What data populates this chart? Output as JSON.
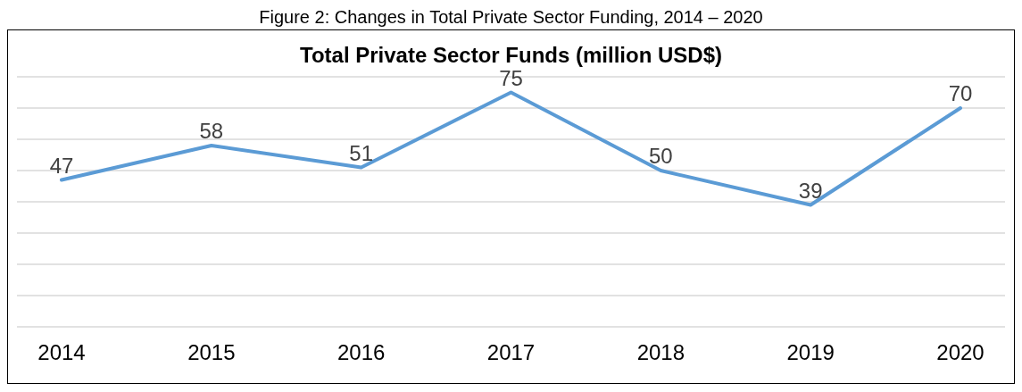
{
  "chart_data": {
    "type": "line",
    "title": "Figure 2: Changes in Total Private Sector Funding, 2014 – 2020",
    "subtitle": "Total Private Sector Funds (million USD$)",
    "categories": [
      "2014",
      "2015",
      "2016",
      "2017",
      "2018",
      "2019",
      "2020"
    ],
    "series": [
      {
        "color": "#5b9bd5",
        "values": [
          47,
          58,
          51,
          75,
          50,
          39,
          70
        ]
      }
    ],
    "ylim": [
      0,
      80
    ],
    "yticks": [
      {
        "value": 0,
        "label": null
      },
      {
        "value": 10,
        "label": null
      },
      {
        "value": 20,
        "label": null
      },
      {
        "value": 30,
        "label": null
      },
      {
        "value": 40,
        "label": null
      },
      {
        "value": 50,
        "label": null
      },
      {
        "value": 60,
        "label": null
      },
      {
        "value": 70,
        "label": null
      },
      {
        "value": 80,
        "label": null
      }
    ],
    "tick_labels": "x",
    "grid": "y",
    "data_labels": true,
    "marker": "none",
    "line_style": "solid",
    "legend": false
  }
}
